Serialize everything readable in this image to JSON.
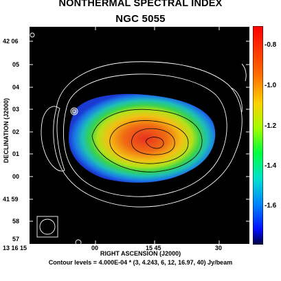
{
  "title": "NONTHERMAL SPECTRAL INDEX",
  "subtitle": "NGC 5055",
  "ylabel": "DECLINATION (J2000)",
  "xlabel": "RIGHT ASCENSION (J2000)",
  "contour_note": "Contour levels = 4.000E-04 * (3, 4.243, 6, 12, 16.97, 40) Jy/beam",
  "dec_ticks": [
    "42 06",
    "05",
    "04",
    "03",
    "02",
    "01",
    "00",
    "41 59",
    "58",
    "57"
  ],
  "ra_ticks": [
    "13 16 15",
    "00",
    "15 45",
    "30"
  ],
  "colorbar_ticks": [
    "-0.8",
    "-1.0",
    "-1.2",
    "-1.4",
    "-1.6"
  ],
  "colors": {
    "background": "#000000",
    "contour": "#ffffff",
    "inner_contour": "#000000"
  }
}
